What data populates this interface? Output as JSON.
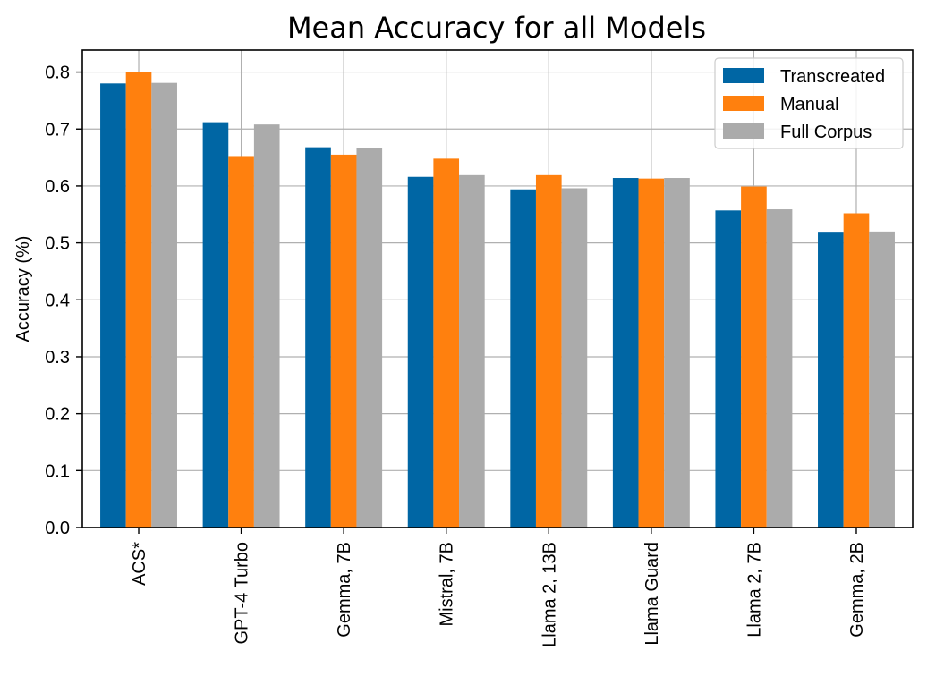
{
  "chart_data": {
    "type": "bar",
    "title": "Mean Accuracy for all Models",
    "xlabel": "",
    "ylabel": "Accuracy (%)",
    "categories": [
      "ACS*",
      "GPT-4 Turbo",
      "Gemma, 7B",
      "Mistral, 7B",
      "Llama 2, 13B",
      "Llama Guard",
      "Llama 2, 7B",
      "Gemma, 2B"
    ],
    "series": [
      {
        "name": "Transcreated",
        "color": "#0066a4",
        "values": [
          0.78,
          0.712,
          0.668,
          0.616,
          0.594,
          0.614,
          0.557,
          0.518
        ]
      },
      {
        "name": "Manual",
        "color": "#ff800e",
        "values": [
          0.8,
          0.651,
          0.655,
          0.648,
          0.619,
          0.613,
          0.599,
          0.552
        ]
      },
      {
        "name": "Full Corpus",
        "color": "#ababab",
        "values": [
          0.781,
          0.708,
          0.667,
          0.619,
          0.596,
          0.614,
          0.559,
          0.52
        ]
      }
    ],
    "ylim": [
      0,
      0.8386
    ],
    "yticks": [
      "0.0",
      "0.1",
      "0.2",
      "0.3",
      "0.4",
      "0.5",
      "0.6",
      "0.7",
      "0.8"
    ],
    "grid": true,
    "legend_position": "top-right"
  }
}
